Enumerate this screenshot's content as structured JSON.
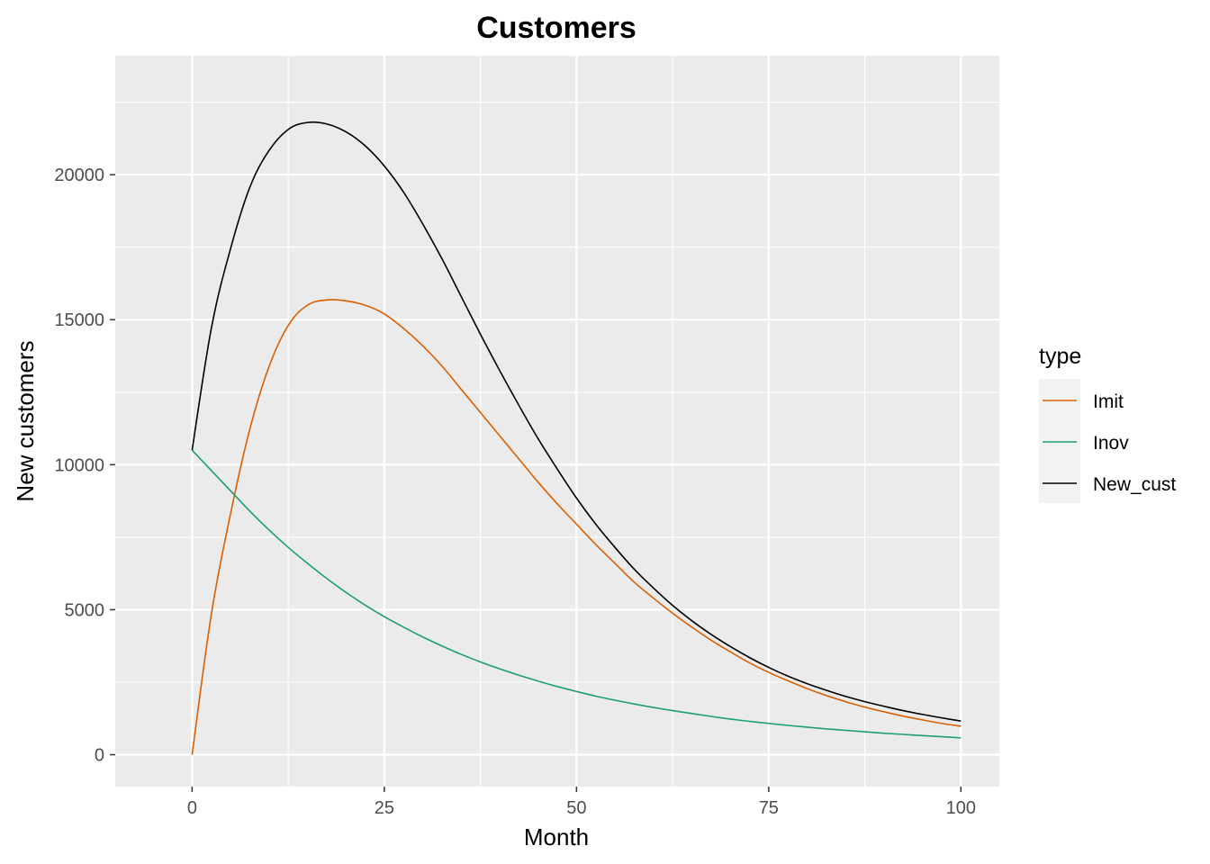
{
  "chart_data": {
    "type": "line",
    "title": "Customers",
    "xlabel": "Month",
    "ylabel": "New customers",
    "xlim": [
      -10,
      105
    ],
    "ylim": [
      -1100,
      24100
    ],
    "x_ticks": [
      0,
      25,
      50,
      75,
      100
    ],
    "y_ticks": [
      0,
      5000,
      10000,
      15000,
      20000
    ],
    "x_tick_labels": [
      "0",
      "25",
      "50",
      "75",
      "100"
    ],
    "y_tick_labels": [
      "0",
      "5000",
      "10000",
      "15000",
      "20000"
    ],
    "grid": true,
    "legend": {
      "title": "type",
      "placement": "right"
    },
    "x": [
      0,
      2.5,
      5,
      7.5,
      10,
      12.5,
      15,
      17.5,
      20,
      22.5,
      25,
      27.5,
      30,
      32.5,
      35,
      37.5,
      40,
      42.5,
      45,
      47.5,
      50,
      52.5,
      55,
      57.5,
      60,
      62.5,
      65,
      67.5,
      70,
      72.5,
      75,
      77.5,
      80,
      82.5,
      85,
      87.5,
      90,
      92.5,
      95,
      97.5,
      100
    ],
    "series": [
      {
        "name": "Imit",
        "color": "#d95f02",
        "values": [
          0,
          4840,
          8310,
          11220,
          13380,
          14800,
          15500,
          15680,
          15650,
          15500,
          15200,
          14700,
          14100,
          13400,
          12600,
          11800,
          11000,
          10200,
          9400,
          8650,
          7950,
          7250,
          6600,
          5950,
          5400,
          4880,
          4400,
          3950,
          3550,
          3170,
          2840,
          2550,
          2280,
          2040,
          1830,
          1640,
          1480,
          1330,
          1200,
          1080,
          980
        ]
      },
      {
        "name": "Inov",
        "color": "#1b9e77",
        "values": [
          10500,
          9800,
          9100,
          8400,
          7750,
          7150,
          6600,
          6080,
          5600,
          5160,
          4760,
          4400,
          4060,
          3750,
          3460,
          3200,
          2960,
          2740,
          2540,
          2350,
          2180,
          2020,
          1880,
          1750,
          1630,
          1520,
          1420,
          1320,
          1230,
          1150,
          1080,
          1010,
          950,
          890,
          840,
          790,
          740,
          700,
          660,
          620,
          580
        ]
      },
      {
        "name": "New_cust",
        "color": "#000000",
        "values": [
          10500,
          14700,
          17450,
          19560,
          20830,
          21560,
          21800,
          21750,
          21480,
          21000,
          20300,
          19400,
          18300,
          17100,
          15800,
          14500,
          13250,
          12050,
          10900,
          9850,
          8850,
          7950,
          7150,
          6400,
          5750,
          5150,
          4620,
          4150,
          3730,
          3350,
          3010,
          2710,
          2450,
          2220,
          2010,
          1830,
          1670,
          1520,
          1390,
          1270,
          1160
        ]
      }
    ]
  }
}
